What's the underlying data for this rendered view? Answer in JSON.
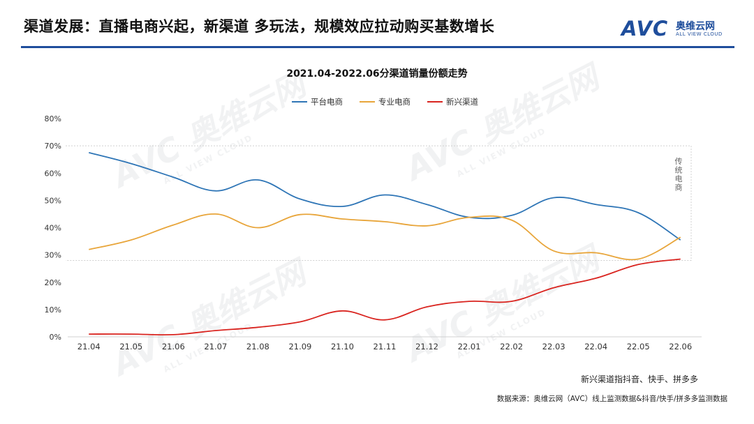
{
  "header": {
    "title": "渠道发展：直播电商兴起，新渠道 多玩法，规模效应拉动购买基数增长",
    "logo_mark": "AVC",
    "logo_cn": "奥维云网",
    "logo_en": "ALL VIEW CLOUD"
  },
  "watermark": {
    "big": "AVC 奥维云网",
    "sub": "ALL VIEW CLOUD"
  },
  "colors": {
    "platform": "#2e75b6",
    "specialty": "#e8a53a",
    "emerging": "#d9241f",
    "accent": "#1f4e9c"
  },
  "chart_data": {
    "type": "line",
    "title": "2021.04-2022.06分渠道销量份额走势",
    "categories": [
      "21.04",
      "21.05",
      "21.06",
      "21.07",
      "21.08",
      "21.09",
      "21.10",
      "21.11",
      "21.12",
      "22.01",
      "22.02",
      "22.03",
      "22.04",
      "22.05",
      "22.06"
    ],
    "series": [
      {
        "name": "平台电商",
        "color": "#2e75b6",
        "values": [
          67.5,
          63.5,
          58.5,
          53.5,
          57.5,
          50.5,
          47.8,
          52.0,
          48.5,
          43.8,
          44.5,
          51.0,
          48.5,
          45.5,
          35.5
        ]
      },
      {
        "name": "专业电商",
        "color": "#e8a53a",
        "values": [
          32.0,
          35.5,
          41.0,
          45.0,
          40.0,
          44.8,
          43.2,
          42.2,
          40.7,
          43.8,
          42.8,
          31.5,
          30.8,
          28.5,
          36.5
        ]
      },
      {
        "name": "新兴渠道",
        "color": "#d9241f",
        "values": [
          1.0,
          1.0,
          0.8,
          2.3,
          3.5,
          5.5,
          9.5,
          6.2,
          11.0,
          13.0,
          13.0,
          18.0,
          21.5,
          26.5,
          28.5
        ]
      }
    ],
    "yticks": [
      "0%",
      "10%",
      "20%",
      "30%",
      "40%",
      "50%",
      "60%",
      "70%",
      "80%"
    ],
    "ylim": [
      0,
      80
    ],
    "legend": "top-center",
    "annotation": "传统电商",
    "annotation_range": [
      28,
      70
    ]
  },
  "footnote": "新兴渠道指抖音、快手、拼多多",
  "source": "数据来源：奥维云网（AVC）线上监测数据&抖音/快手/拼多多监测数据"
}
